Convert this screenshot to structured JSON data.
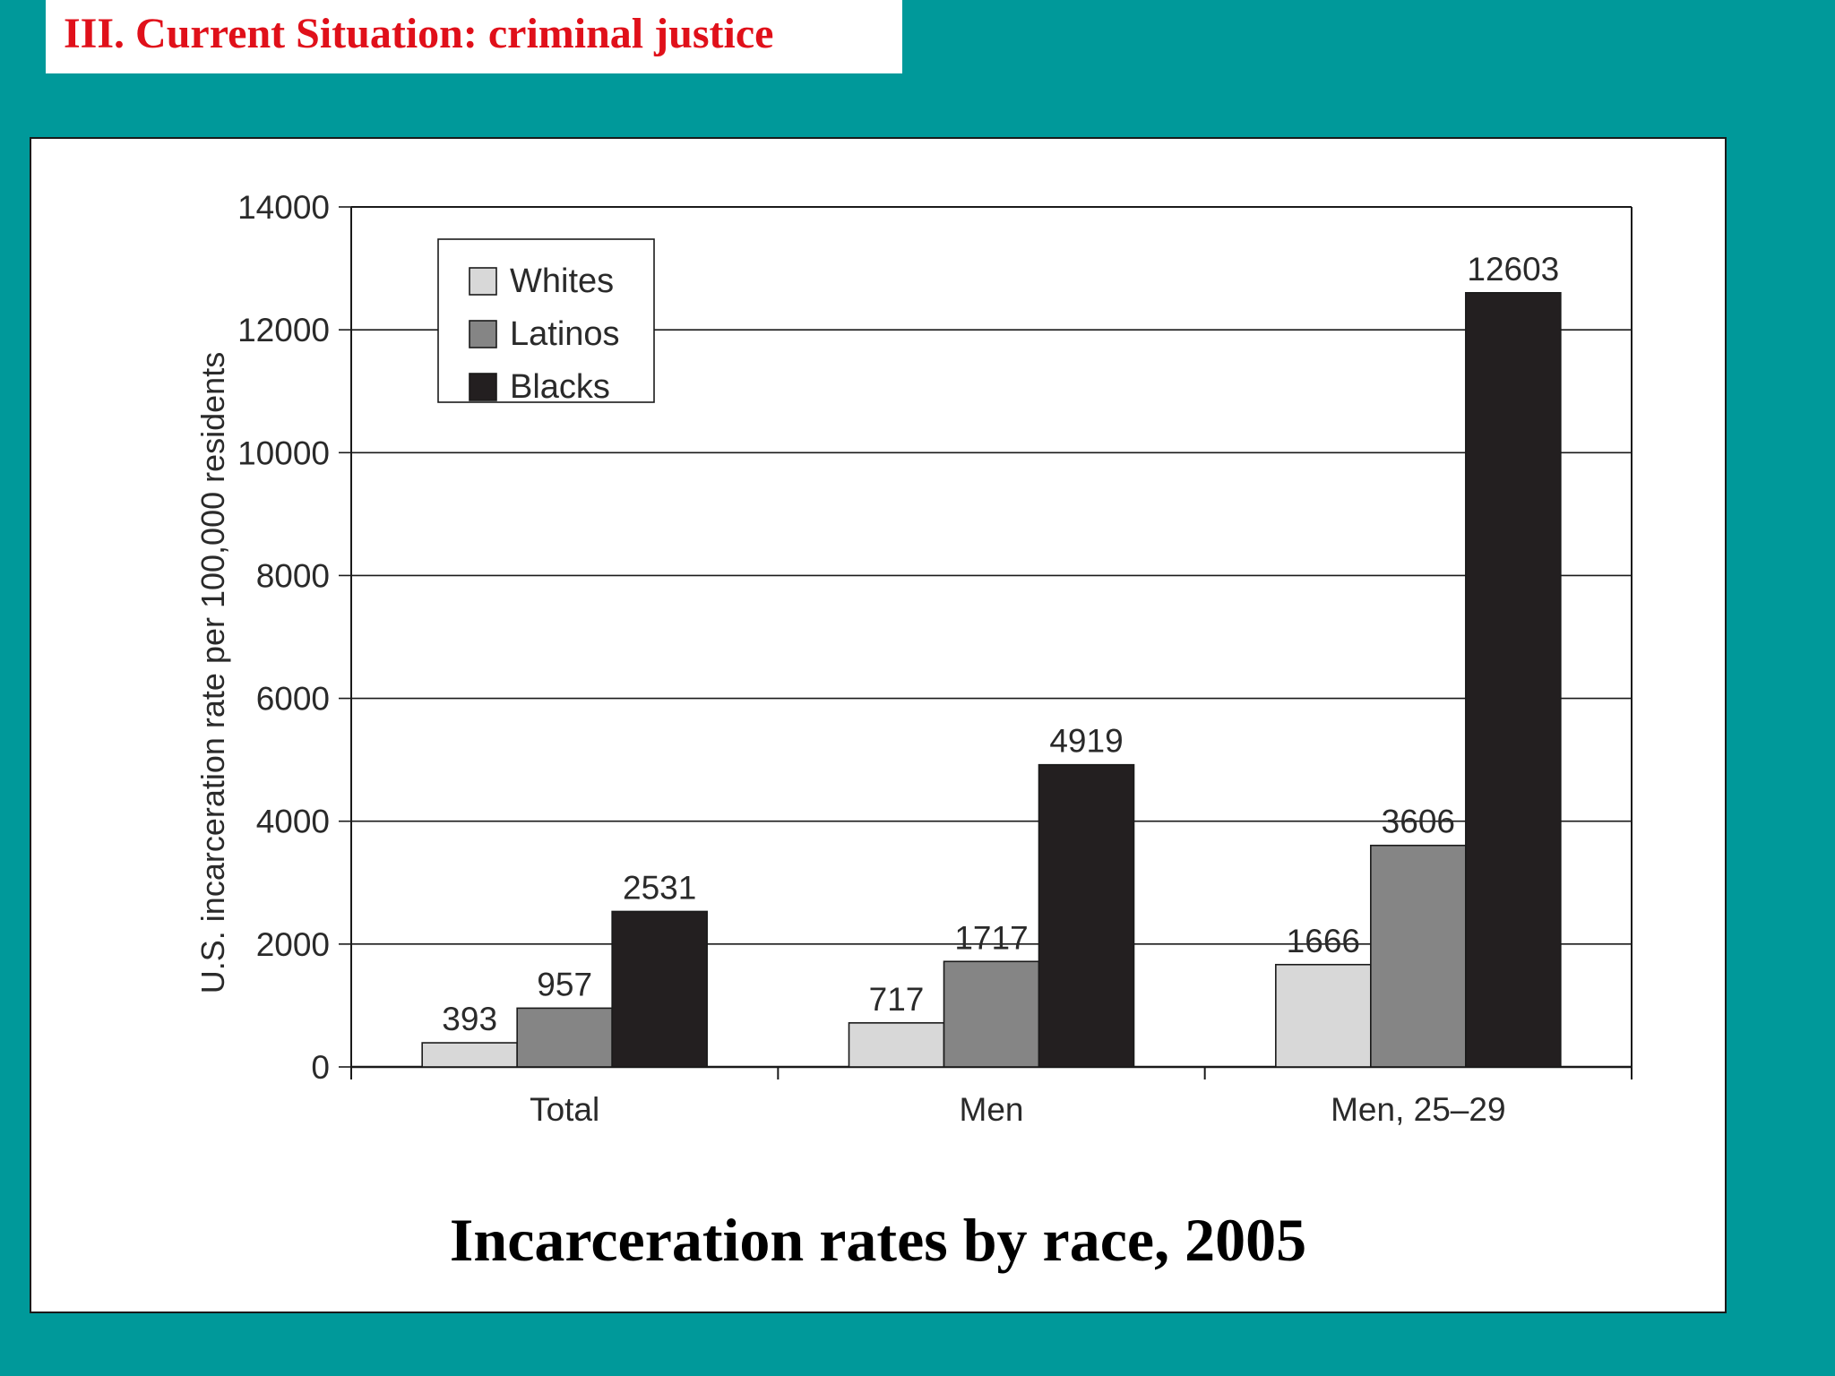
{
  "slide": {
    "heading": "III. Current Situation: criminal justice",
    "caption": "Incarceration rates by race, 2005"
  },
  "colors": {
    "background": "#00999a",
    "heading": "#e0101a",
    "whites": "#d8d8d8",
    "latinos": "#858585",
    "blacks": "#231f20"
  },
  "chart_data": {
    "type": "bar",
    "title": "",
    "xlabel": "",
    "ylabel": "U.S. incarceration rate per 100,000 residents",
    "categories": [
      "Total",
      "Men",
      "Men, 25–29"
    ],
    "series": [
      {
        "name": "Whites",
        "values": [
          393,
          717,
          1666
        ],
        "color": "#d8d8d8"
      },
      {
        "name": "Latinos",
        "values": [
          957,
          1717,
          3606
        ],
        "color": "#858585"
      },
      {
        "name": "Blacks",
        "values": [
          2531,
          4919,
          12603
        ],
        "color": "#231f20"
      }
    ],
    "ylim": [
      0,
      14000
    ],
    "yticks": [
      0,
      2000,
      4000,
      6000,
      8000,
      10000,
      12000,
      14000
    ],
    "grid": true,
    "legend": "top-left",
    "data_labels": true
  }
}
